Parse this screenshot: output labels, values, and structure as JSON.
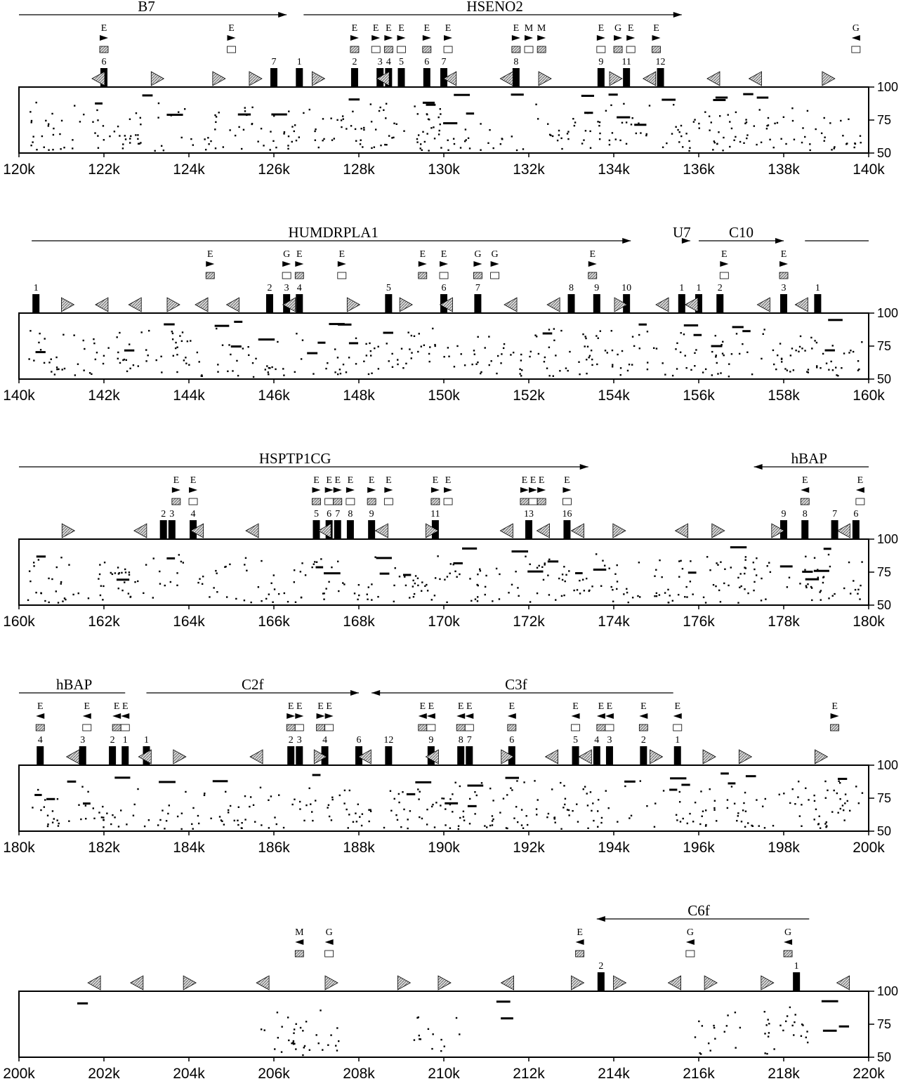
{
  "figure": {
    "y_ticks": [
      "100",
      "75",
      "50"
    ],
    "panels": [
      {
        "x_labels": [
          "120k",
          "122k",
          "124k",
          "126k",
          "128k",
          "130k",
          "132k",
          "134k",
          "136k",
          "138k",
          "140k"
        ],
        "genes": [
          {
            "name": "B7",
            "from": 120.0,
            "to": 126.3,
            "dir": "right",
            "label_at": 123.0
          },
          {
            "name": "HSENO2",
            "from": 126.7,
            "to": 135.6,
            "dir": "right",
            "label_at": 131.2
          }
        ],
        "exon_numbers": [
          {
            "t": "6",
            "x": 122.0
          },
          {
            "t": "7",
            "x": 126.0
          },
          {
            "t": "1",
            "x": 126.6
          },
          {
            "t": "2",
            "x": 127.9
          },
          {
            "t": "3",
            "x": 128.5
          },
          {
            "t": "4",
            "x": 128.7
          },
          {
            "t": "5",
            "x": 129.0
          },
          {
            "t": "6",
            "x": 129.6
          },
          {
            "t": "7",
            "x": 130.0
          },
          {
            "t": "8",
            "x": 131.7
          },
          {
            "t": "9",
            "x": 133.7
          },
          {
            "t": "11",
            "x": 134.3
          },
          {
            "t": "12",
            "x": 135.1
          }
        ],
        "markers": [
          {
            "t": "E",
            "x": 122.0,
            "d": "r"
          },
          {
            "t": "E",
            "x": 125.0,
            "d": "r"
          },
          {
            "t": "E",
            "x": 127.9,
            "d": "r"
          },
          {
            "t": "E",
            "x": 128.4,
            "d": "r"
          },
          {
            "t": "E",
            "x": 128.7,
            "d": "r"
          },
          {
            "t": "E",
            "x": 129.0,
            "d": "r"
          },
          {
            "t": "E",
            "x": 129.6,
            "d": "r"
          },
          {
            "t": "E",
            "x": 130.1,
            "d": "r"
          },
          {
            "t": "E",
            "x": 131.7,
            "d": "r"
          },
          {
            "t": "M",
            "x": 132.0,
            "d": "r"
          },
          {
            "t": "M",
            "x": 132.3,
            "d": "r"
          },
          {
            "t": "E",
            "x": 133.7,
            "d": "r"
          },
          {
            "t": "G",
            "x": 134.1,
            "d": "r"
          },
          {
            "t": "E",
            "x": 134.4,
            "d": "r"
          },
          {
            "t": "E",
            "x": 135.0,
            "d": "r"
          },
          {
            "t": "G",
            "x": 139.7,
            "d": "l"
          }
        ]
      },
      {
        "x_labels": [
          "140k",
          "142k",
          "144k",
          "146k",
          "148k",
          "150k",
          "152k",
          "154k",
          "156k",
          "158k",
          "160k"
        ],
        "genes": [
          {
            "name": "HUMDRPLA1",
            "from": 140.3,
            "to": 154.4,
            "dir": "right",
            "label_at": 147.4
          },
          {
            "name": "U7",
            "from": 155.6,
            "to": 155.8,
            "dir": "right",
            "label_at": 155.6
          },
          {
            "name": "C10",
            "from": 156.0,
            "to": 158.0,
            "dir": "right",
            "label_at": 157.0
          },
          {
            "name": "",
            "from": 158.5,
            "to": 160.0,
            "dir": "none",
            "label_at": 159.0
          }
        ],
        "exon_numbers": [
          {
            "t": "1",
            "x": 140.4
          },
          {
            "t": "2",
            "x": 145.9
          },
          {
            "t": "3",
            "x": 146.3
          },
          {
            "t": "4",
            "x": 146.6
          },
          {
            "t": "5",
            "x": 148.7
          },
          {
            "t": "6",
            "x": 150.0
          },
          {
            "t": "7",
            "x": 150.8
          },
          {
            "t": "8",
            "x": 153.0
          },
          {
            "t": "9",
            "x": 153.6
          },
          {
            "t": "10",
            "x": 154.3
          },
          {
            "t": "1",
            "x": 155.6
          },
          {
            "t": "1",
            "x": 156.0
          },
          {
            "t": "2",
            "x": 156.5
          },
          {
            "t": "3",
            "x": 158.0
          },
          {
            "t": "1",
            "x": 158.8
          }
        ],
        "markers": [
          {
            "t": "E",
            "x": 144.5,
            "d": "r"
          },
          {
            "t": "G",
            "x": 146.3,
            "d": "r"
          },
          {
            "t": "E",
            "x": 146.6,
            "d": "r"
          },
          {
            "t": "E",
            "x": 147.6,
            "d": "r"
          },
          {
            "t": "E",
            "x": 149.5,
            "d": "r"
          },
          {
            "t": "E",
            "x": 150.0,
            "d": "r"
          },
          {
            "t": "G",
            "x": 150.8,
            "d": "r"
          },
          {
            "t": "G",
            "x": 151.2,
            "d": "r"
          },
          {
            "t": "E",
            "x": 153.5,
            "d": "r"
          },
          {
            "t": "E",
            "x": 156.6,
            "d": "r"
          },
          {
            "t": "E",
            "x": 158.0,
            "d": "r"
          }
        ]
      },
      {
        "x_labels": [
          "160k",
          "162k",
          "164k",
          "166k",
          "168k",
          "170k",
          "172k",
          "174k",
          "176k",
          "178k",
          "180k"
        ],
        "genes": [
          {
            "name": "HSPTP1CG",
            "from": 160.0,
            "to": 173.4,
            "dir": "right",
            "label_at": 166.5
          },
          {
            "name": "hBAP",
            "from": 177.3,
            "to": 180.0,
            "dir": "left",
            "label_at": 178.6
          }
        ],
        "exon_numbers": [
          {
            "t": "2",
            "x": 163.4
          },
          {
            "t": "3",
            "x": 163.6
          },
          {
            "t": "4",
            "x": 164.1
          },
          {
            "t": "5",
            "x": 167.0
          },
          {
            "t": "6",
            "x": 167.3
          },
          {
            "t": "7",
            "x": 167.5
          },
          {
            "t": "8",
            "x": 167.8
          },
          {
            "t": "9",
            "x": 168.3
          },
          {
            "t": "11",
            "x": 169.8
          },
          {
            "t": "13",
            "x": 172.0
          },
          {
            "t": "16",
            "x": 172.9
          },
          {
            "t": "9",
            "x": 178.0
          },
          {
            "t": "8",
            "x": 178.5
          },
          {
            "t": "7",
            "x": 179.2
          },
          {
            "t": "6",
            "x": 179.7
          }
        ],
        "markers": [
          {
            "t": "E",
            "x": 163.7,
            "d": "r"
          },
          {
            "t": "E",
            "x": 164.1,
            "d": "r"
          },
          {
            "t": "E",
            "x": 167.0,
            "d": "r"
          },
          {
            "t": "E",
            "x": 167.3,
            "d": "r"
          },
          {
            "t": "E",
            "x": 167.5,
            "d": "r"
          },
          {
            "t": "E",
            "x": 167.8,
            "d": "r"
          },
          {
            "t": "E",
            "x": 168.3,
            "d": "r"
          },
          {
            "t": "E",
            "x": 168.7,
            "d": "r"
          },
          {
            "t": "E",
            "x": 169.8,
            "d": "r"
          },
          {
            "t": "E",
            "x": 170.1,
            "d": "r"
          },
          {
            "t": "E",
            "x": 171.9,
            "d": "r"
          },
          {
            "t": "E",
            "x": 172.1,
            "d": "r"
          },
          {
            "t": "E",
            "x": 172.3,
            "d": "r"
          },
          {
            "t": "E",
            "x": 172.9,
            "d": "r"
          },
          {
            "t": "E",
            "x": 178.5,
            "d": "l"
          },
          {
            "t": "E",
            "x": 179.8,
            "d": "l"
          }
        ]
      },
      {
        "x_labels": [
          "180k",
          "182k",
          "184k",
          "186k",
          "188k",
          "190k",
          "192k",
          "194k",
          "196k",
          "198k",
          "200k"
        ],
        "genes": [
          {
            "name": "hBAP",
            "from": 180.0,
            "to": 182.5,
            "dir": "none",
            "label_at": 181.3
          },
          {
            "name": "C2f",
            "from": 183.0,
            "to": 188.0,
            "dir": "right",
            "label_at": 185.5
          },
          {
            "name": "C3f",
            "from": 188.3,
            "to": 195.4,
            "dir": "left",
            "label_at": 191.7
          }
        ],
        "exon_numbers": [
          {
            "t": "4",
            "x": 180.5
          },
          {
            "t": "3",
            "x": 181.5
          },
          {
            "t": "2",
            "x": 182.2
          },
          {
            "t": "1",
            "x": 182.5
          },
          {
            "t": "1",
            "x": 183.0
          },
          {
            "t": "2",
            "x": 186.4
          },
          {
            "t": "3",
            "x": 186.6
          },
          {
            "t": "4",
            "x": 187.2
          },
          {
            "t": "6",
            "x": 188.0
          },
          {
            "t": "12",
            "x": 188.7
          },
          {
            "t": "9",
            "x": 189.7
          },
          {
            "t": "8",
            "x": 190.4
          },
          {
            "t": "7",
            "x": 190.6
          },
          {
            "t": "6",
            "x": 191.6
          },
          {
            "t": "5",
            "x": 193.1
          },
          {
            "t": "4",
            "x": 193.6
          },
          {
            "t": "3",
            "x": 193.9
          },
          {
            "t": "2",
            "x": 194.7
          },
          {
            "t": "1",
            "x": 195.5
          }
        ],
        "markers": [
          {
            "t": "E",
            "x": 180.5,
            "d": "l"
          },
          {
            "t": "E",
            "x": 181.6,
            "d": "l"
          },
          {
            "t": "E",
            "x": 182.3,
            "d": "l"
          },
          {
            "t": "E",
            "x": 182.5,
            "d": "l"
          },
          {
            "t": "E",
            "x": 186.4,
            "d": "r"
          },
          {
            "t": "E",
            "x": 186.6,
            "d": "r"
          },
          {
            "t": "E",
            "x": 187.1,
            "d": "r"
          },
          {
            "t": "E",
            "x": 187.3,
            "d": "r"
          },
          {
            "t": "E",
            "x": 189.5,
            "d": "l"
          },
          {
            "t": "E",
            "x": 189.7,
            "d": "l"
          },
          {
            "t": "E",
            "x": 190.4,
            "d": "l"
          },
          {
            "t": "E",
            "x": 190.6,
            "d": "l"
          },
          {
            "t": "E",
            "x": 191.6,
            "d": "l"
          },
          {
            "t": "E",
            "x": 193.1,
            "d": "l"
          },
          {
            "t": "E",
            "x": 193.7,
            "d": "l"
          },
          {
            "t": "E",
            "x": 193.9,
            "d": "l"
          },
          {
            "t": "E",
            "x": 194.7,
            "d": "l"
          },
          {
            "t": "E",
            "x": 195.5,
            "d": "l"
          },
          {
            "t": "E",
            "x": 199.2,
            "d": "r"
          }
        ]
      },
      {
        "x_labels": [
          "200k",
          "202k",
          "204k",
          "206k",
          "208k",
          "210k",
          "212k",
          "214k",
          "216k",
          "218k",
          "220k"
        ],
        "genes": [
          {
            "name": "C6f",
            "from": 213.6,
            "to": 218.6,
            "dir": "left",
            "label_at": 216.0
          }
        ],
        "exon_numbers": [
          {
            "t": "2",
            "x": 213.7
          },
          {
            "t": "1",
            "x": 218.3
          }
        ],
        "markers": [
          {
            "t": "M",
            "x": 206.6,
            "d": "l"
          },
          {
            "t": "G",
            "x": 207.3,
            "d": "l"
          },
          {
            "t": "E",
            "x": 213.2,
            "d": "l"
          },
          {
            "t": "G",
            "x": 215.8,
            "d": "l"
          },
          {
            "t": "G",
            "x": 218.1,
            "d": "l"
          }
        ]
      }
    ]
  }
}
